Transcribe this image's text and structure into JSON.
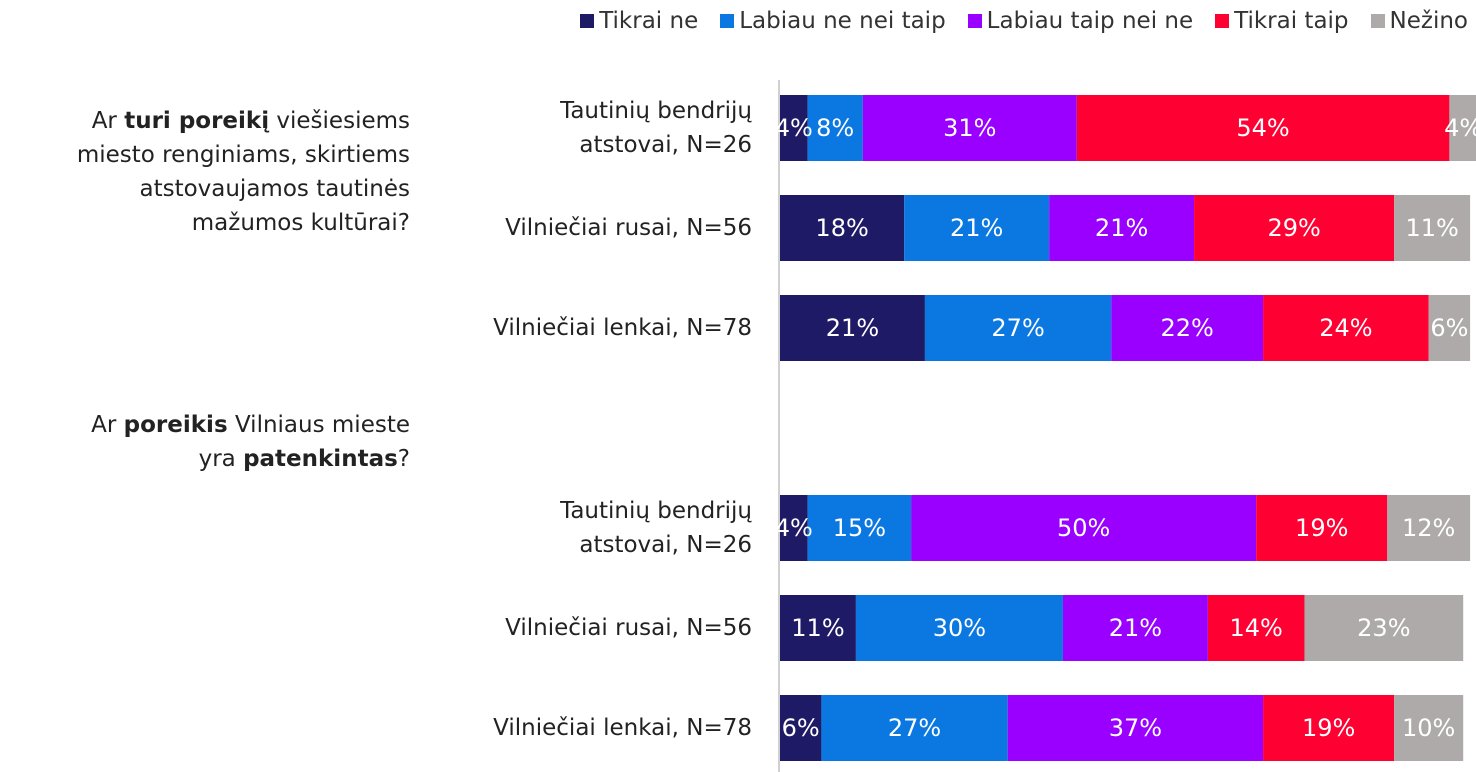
{
  "chart_data": {
    "type": "stacked-bar-horizontal",
    "questions": [
      [
        [
          {
            "text": "Ar ",
            "bold": false
          },
          {
            "text": "turi poreikį",
            "bold": true
          },
          {
            "text": " viešiesiems",
            "bold": false
          }
        ],
        [
          {
            "text": "miesto renginiams, skirtiems",
            "bold": false
          }
        ],
        [
          {
            "text": "atstovaujamos tautinės",
            "bold": false
          }
        ],
        [
          {
            "text": "mažumos kultūrai?",
            "bold": false
          }
        ]
      ],
      [
        [
          {
            "text": "Ar ",
            "bold": false
          },
          {
            "text": "poreikis",
            "bold": true
          },
          {
            "text": " Vilniaus mieste",
            "bold": false
          }
        ],
        [
          {
            "text": "yra ",
            "bold": false
          },
          {
            "text": "patenkintas",
            "bold": true
          },
          {
            "text": "?",
            "bold": false
          }
        ]
      ]
    ],
    "categories": [
      "Tautinių bendrijų\natstovai, N=26",
      "Vilniečiai rusai, N=56",
      "Vilniečiai lenkai, N=78",
      null,
      "Tautinių bendrijų\natstovai, N=26",
      "Vilniečiai rusai, N=56",
      "Vilniečiai lenkai, N=78"
    ],
    "series": [
      {
        "name": "Tikrai ne",
        "color": "#1f1a66",
        "values": [
          4,
          18,
          21,
          null,
          4,
          11,
          6
        ],
        "value_labels": [
          "4%",
          "18%",
          "21%",
          null,
          "4%",
          "11%",
          "6%"
        ]
      },
      {
        "name": "Labiau ne nei taip",
        "color": "#0a78e0",
        "values": [
          8,
          21,
          27,
          null,
          15,
          30,
          27
        ],
        "value_labels": [
          "8%",
          "21%",
          "27%",
          null,
          "15%",
          "30%",
          "27%"
        ]
      },
      {
        "name": "Labiau taip nei ne",
        "color": "#9900ff",
        "values": [
          31,
          21,
          22,
          null,
          50,
          21,
          37
        ],
        "value_labels": [
          "31%",
          "21%",
          "22%",
          null,
          "50%",
          "21%",
          "37%"
        ]
      },
      {
        "name": "Tikrai taip",
        "color": "#ff0033",
        "values": [
          54,
          29,
          24,
          null,
          19,
          14,
          19
        ],
        "value_labels": [
          "54%",
          "29%",
          "24%",
          null,
          "19%",
          "14%",
          "19%"
        ]
      },
      {
        "name": "Nežino",
        "color": "#aeaaaa",
        "values": [
          4,
          11,
          6,
          null,
          12,
          23,
          10
        ],
        "value_labels": [
          "4%",
          "11%",
          "6%",
          null,
          "12%",
          "23%",
          "10%"
        ]
      }
    ]
  }
}
